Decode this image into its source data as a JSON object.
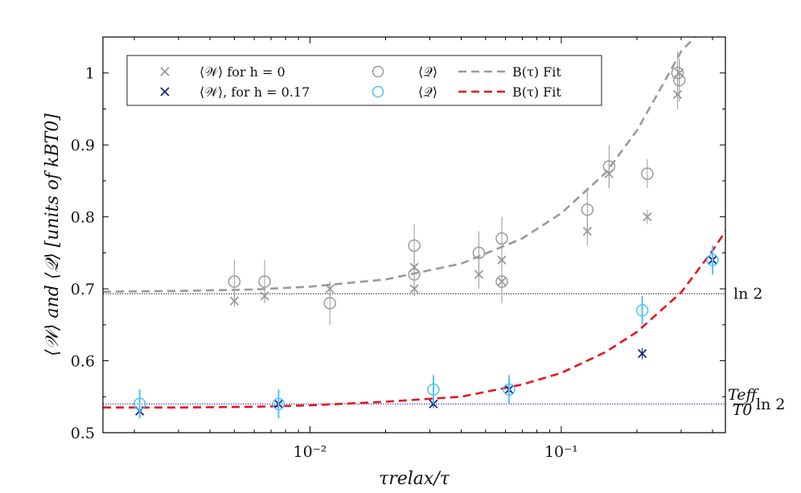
{
  "chart_data": {
    "type": "scatter",
    "x_scale": "log",
    "xlim": [
      0.0015,
      0.45
    ],
    "ylim": [
      0.5,
      1.05
    ],
    "xlabel": "τrelax/τ",
    "ylabel": "⟨𝒲⟩ and ⟨𝒬⟩ [units of kBT0]",
    "x_ticks": [
      {
        "value": 0.01,
        "label": "10⁻²"
      },
      {
        "value": 0.1,
        "label": "10⁻¹"
      }
    ],
    "y_ticks": [
      {
        "value": 0.5,
        "label": "0.5"
      },
      {
        "value": 0.6,
        "label": "0.6"
      },
      {
        "value": 0.7,
        "label": "0.7"
      },
      {
        "value": 0.8,
        "label": "0.8"
      },
      {
        "value": 0.9,
        "label": "0.9"
      },
      {
        "value": 1.0,
        "label": "1"
      }
    ],
    "reference_lines": [
      {
        "value": 0.6931,
        "label": "ln 2",
        "color": "#222222"
      },
      {
        "value": 0.54,
        "label": "(Teff/T0) ln 2",
        "label_num": "Teff",
        "label_den": "T0",
        "label_tail": "ln 2",
        "color": "#2222cc"
      }
    ],
    "series": [
      {
        "name": "⟨𝒲⟩ for h = 0",
        "marker": "x",
        "color": "#9a9a9a",
        "points": [
          {
            "x": 0.005,
            "y": 0.683,
            "err": 0.008
          },
          {
            "x": 0.0066,
            "y": 0.69,
            "err": 0.008
          },
          {
            "x": 0.012,
            "y": 0.7,
            "err": 0.01
          },
          {
            "x": 0.026,
            "y": 0.73,
            "err": 0.02
          },
          {
            "x": 0.026,
            "y": 0.7,
            "err": 0.01
          },
          {
            "x": 0.047,
            "y": 0.72,
            "err": 0.02
          },
          {
            "x": 0.058,
            "y": 0.74,
            "err": 0.02
          },
          {
            "x": 0.058,
            "y": 0.71,
            "err": 0.01
          },
          {
            "x": 0.127,
            "y": 0.78,
            "err": 0.02
          },
          {
            "x": 0.155,
            "y": 0.86,
            "err": 0.02
          },
          {
            "x": 0.22,
            "y": 0.8,
            "err": 0.01
          },
          {
            "x": 0.29,
            "y": 0.97,
            "err": 0.02
          },
          {
            "x": 0.295,
            "y": 1.0,
            "err": 0.02
          }
        ]
      },
      {
        "name": "⟨𝒲⟩, for h = 0.17",
        "marker": "x",
        "color": "#1a237e",
        "points": [
          {
            "x": 0.0021,
            "y": 0.53,
            "err": 0.008
          },
          {
            "x": 0.0075,
            "y": 0.54,
            "err": 0.008
          },
          {
            "x": 0.031,
            "y": 0.54,
            "err": 0.006
          },
          {
            "x": 0.062,
            "y": 0.56,
            "err": 0.01
          },
          {
            "x": 0.21,
            "y": 0.61,
            "err": 0.008
          },
          {
            "x": 0.4,
            "y": 0.74,
            "err": 0.01
          }
        ]
      },
      {
        "name": "⟨𝒬⟩",
        "marker": "circle",
        "color": "#9a9a9a",
        "points": [
          {
            "x": 0.005,
            "y": 0.71,
            "err": 0.03
          },
          {
            "x": 0.0066,
            "y": 0.71,
            "err": 0.03
          },
          {
            "x": 0.012,
            "y": 0.68,
            "err": 0.03
          },
          {
            "x": 0.026,
            "y": 0.76,
            "err": 0.03
          },
          {
            "x": 0.026,
            "y": 0.72,
            "err": 0.03
          },
          {
            "x": 0.047,
            "y": 0.75,
            "err": 0.03
          },
          {
            "x": 0.058,
            "y": 0.77,
            "err": 0.03
          },
          {
            "x": 0.058,
            "y": 0.71,
            "err": 0.03
          },
          {
            "x": 0.127,
            "y": 0.81,
            "err": 0.03
          },
          {
            "x": 0.155,
            "y": 0.87,
            "err": 0.03
          },
          {
            "x": 0.22,
            "y": 0.86,
            "err": 0.02
          },
          {
            "x": 0.29,
            "y": 1.0,
            "err": 0.03
          },
          {
            "x": 0.295,
            "y": 0.99,
            "err": 0.03
          }
        ]
      },
      {
        "name": "⟨𝒬⟩",
        "marker": "circle",
        "color": "#4fc3f7",
        "points": [
          {
            "x": 0.0021,
            "y": 0.54,
            "err": 0.02
          },
          {
            "x": 0.0075,
            "y": 0.54,
            "err": 0.02
          },
          {
            "x": 0.031,
            "y": 0.56,
            "err": 0.02
          },
          {
            "x": 0.062,
            "y": 0.56,
            "err": 0.02
          },
          {
            "x": 0.21,
            "y": 0.67,
            "err": 0.02
          },
          {
            "x": 0.4,
            "y": 0.74,
            "err": 0.02
          }
        ]
      }
    ],
    "fits": [
      {
        "name": "B(τ) Fit",
        "color": "#9a9a9a",
        "style": "dashed",
        "points": [
          [
            0.0015,
            0.696
          ],
          [
            0.003,
            0.697
          ],
          [
            0.006,
            0.699
          ],
          [
            0.01,
            0.703
          ],
          [
            0.02,
            0.713
          ],
          [
            0.04,
            0.735
          ],
          [
            0.07,
            0.77
          ],
          [
            0.1,
            0.805
          ],
          [
            0.15,
            0.861
          ],
          [
            0.2,
            0.92
          ],
          [
            0.25,
            0.98
          ],
          [
            0.3,
            1.03
          ],
          [
            0.34,
            1.05
          ]
        ]
      },
      {
        "name": "B(τ) Fit",
        "color": "#e8141b",
        "style": "dashed",
        "points": [
          [
            0.0015,
            0.535
          ],
          [
            0.003,
            0.535
          ],
          [
            0.006,
            0.536
          ],
          [
            0.01,
            0.538
          ],
          [
            0.02,
            0.543
          ],
          [
            0.04,
            0.55
          ],
          [
            0.07,
            0.567
          ],
          [
            0.1,
            0.583
          ],
          [
            0.15,
            0.612
          ],
          [
            0.2,
            0.64
          ],
          [
            0.3,
            0.695
          ],
          [
            0.4,
            0.753
          ],
          [
            0.45,
            0.78
          ]
        ]
      }
    ],
    "legend": {
      "position": "top-left",
      "entries": [
        {
          "label": "⟨𝒲⟩ for h = 0",
          "marker": "x",
          "color": "#9a9a9a"
        },
        {
          "label": "⟨𝒲⟩, for h = 0.17",
          "marker": "x",
          "color": "#1a237e"
        },
        {
          "label": "⟨𝒬⟩",
          "marker": "circle",
          "color": "#9a9a9a"
        },
        {
          "label": "⟨𝒬⟩",
          "marker": "circle",
          "color": "#4fc3f7"
        },
        {
          "label": "B(τ) Fit",
          "marker": "dash",
          "color": "#9a9a9a"
        },
        {
          "label": "B(τ) Fit",
          "marker": "dash",
          "color": "#e8141b"
        }
      ]
    }
  }
}
